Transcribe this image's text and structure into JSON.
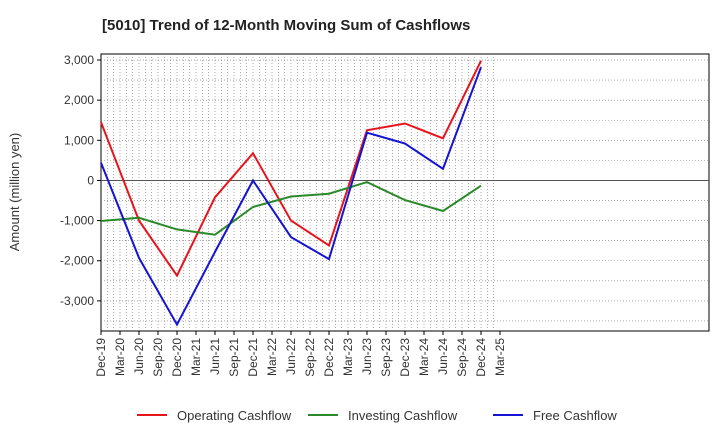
{
  "chart_data": {
    "type": "line",
    "title": "[5010]  Trend of 12-Month Moving Sum of Cashflows",
    "xlabel": "",
    "ylabel": "Amount (million yen)",
    "ylim": [
      -3750,
      3150
    ],
    "yticks": [
      3000,
      2000,
      1000,
      0,
      -1000,
      -2000,
      -3000
    ],
    "ytick_labels": [
      "3,000",
      "2,000",
      "1,000",
      "0",
      "-1,000",
      "-2,000",
      "-3,000"
    ],
    "categories": [
      "Dec-19",
      "Mar-20",
      "Jun-20",
      "Sep-20",
      "Dec-20",
      "Mar-21",
      "Jun-21",
      "Sep-21",
      "Dec-21",
      "Mar-22",
      "Jun-22",
      "Sep-22",
      "Dec-22",
      "Mar-23",
      "Jun-23",
      "Sep-23",
      "Dec-23",
      "Mar-24",
      "Jun-24",
      "Sep-24",
      "Dec-24",
      "Mar-25"
    ],
    "grid": true,
    "legend_position": "bottom",
    "series": [
      {
        "name": "Operating Cashflow",
        "color": "#e8141b",
        "points": [
          [
            "Dec-19",
            1450
          ],
          [
            "Jun-20",
            -1000
          ],
          [
            "Dec-20",
            -2370
          ],
          [
            "Jun-21",
            -420
          ],
          [
            "Dec-21",
            680
          ],
          [
            "Jun-22",
            -1000
          ],
          [
            "Dec-22",
            -1620
          ],
          [
            "Jun-23",
            1250
          ],
          [
            "Dec-23",
            1420
          ],
          [
            "Jun-24",
            1050
          ],
          [
            "Dec-24",
            2980
          ]
        ]
      },
      {
        "name": "Investing Cashflow",
        "color": "#2a8a2a",
        "points": [
          [
            "Dec-19",
            -1010
          ],
          [
            "Jun-20",
            -930
          ],
          [
            "Dec-20",
            -1220
          ],
          [
            "Jun-21",
            -1350
          ],
          [
            "Dec-21",
            -660
          ],
          [
            "Jun-22",
            -400
          ],
          [
            "Dec-22",
            -330
          ],
          [
            "Jun-23",
            -40
          ],
          [
            "Dec-23",
            -490
          ],
          [
            "Jun-24",
            -760
          ],
          [
            "Dec-24",
            -130
          ]
        ]
      },
      {
        "name": "Free Cashflow",
        "color": "#1414d2",
        "points": [
          [
            "Dec-19",
            440
          ],
          [
            "Jun-20",
            -1930
          ],
          [
            "Dec-20",
            -3590
          ],
          [
            "Jun-21",
            -1780
          ],
          [
            "Dec-21",
            0
          ],
          [
            "Jun-22",
            -1410
          ],
          [
            "Dec-22",
            -1960
          ],
          [
            "Jun-23",
            1190
          ],
          [
            "Dec-23",
            920
          ],
          [
            "Jun-24",
            290
          ],
          [
            "Dec-24",
            2820
          ]
        ]
      }
    ]
  }
}
